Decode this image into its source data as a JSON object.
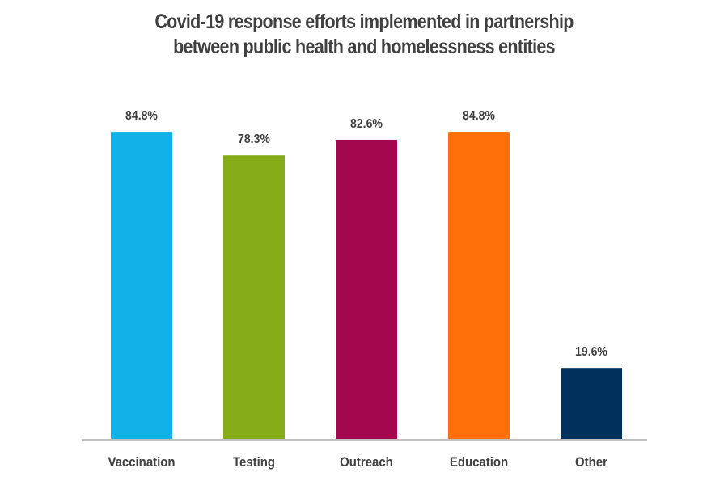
{
  "chart_data": {
    "type": "bar",
    "title": [
      "Covid-19 response efforts implemented in partnership",
      "between public health and homelessness entities"
    ],
    "categories": [
      "Vaccination",
      "Testing",
      "Outreach",
      "Education",
      "Other"
    ],
    "values": [
      84.8,
      78.3,
      82.6,
      84.8,
      19.6
    ],
    "data_labels": [
      "84.8%",
      "78.3%",
      "82.6%",
      "84.8%",
      "19.6%"
    ],
    "colors": [
      "#12b2e8",
      "#86ad18",
      "#a3084e",
      "#ff6f0a",
      "#00305c"
    ],
    "axis_color": "#c0c0c0",
    "xlabel": "",
    "ylabel": "",
    "unit": "%",
    "ylim": [
      0,
      100
    ],
    "grid": false,
    "legend": "none"
  }
}
